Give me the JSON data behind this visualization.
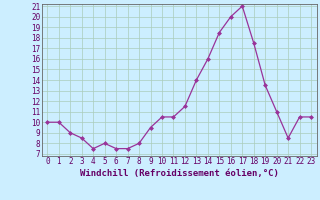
{
  "x": [
    0,
    1,
    2,
    3,
    4,
    5,
    6,
    7,
    8,
    9,
    10,
    11,
    12,
    13,
    14,
    15,
    16,
    17,
    18,
    19,
    20,
    21,
    22,
    23
  ],
  "y": [
    10,
    10,
    9,
    8.5,
    7.5,
    8,
    7.5,
    7.5,
    8,
    9.5,
    10.5,
    10.5,
    11.5,
    14,
    16,
    18.5,
    20,
    21,
    17.5,
    13.5,
    11,
    8.5,
    10.5,
    10.5
  ],
  "line_color": "#993399",
  "marker": "D",
  "markersize": 2.0,
  "linewidth": 0.9,
  "xlabel": "Windchill (Refroidissement éolien,°C)",
  "xlabel_fontsize": 6.5,
  "bg_color": "#cceeff",
  "plot_bg_color": "#cceeff",
  "grid_color": "#aaccbb",
  "ylim": [
    7,
    21
  ],
  "xlim": [
    -0.5,
    23.5
  ],
  "yticks": [
    7,
    8,
    9,
    10,
    11,
    12,
    13,
    14,
    15,
    16,
    17,
    18,
    19,
    20,
    21
  ],
  "xticks": [
    0,
    1,
    2,
    3,
    4,
    5,
    6,
    7,
    8,
    9,
    10,
    11,
    12,
    13,
    14,
    15,
    16,
    17,
    18,
    19,
    20,
    21,
    22,
    23
  ],
  "tick_fontsize": 5.5
}
